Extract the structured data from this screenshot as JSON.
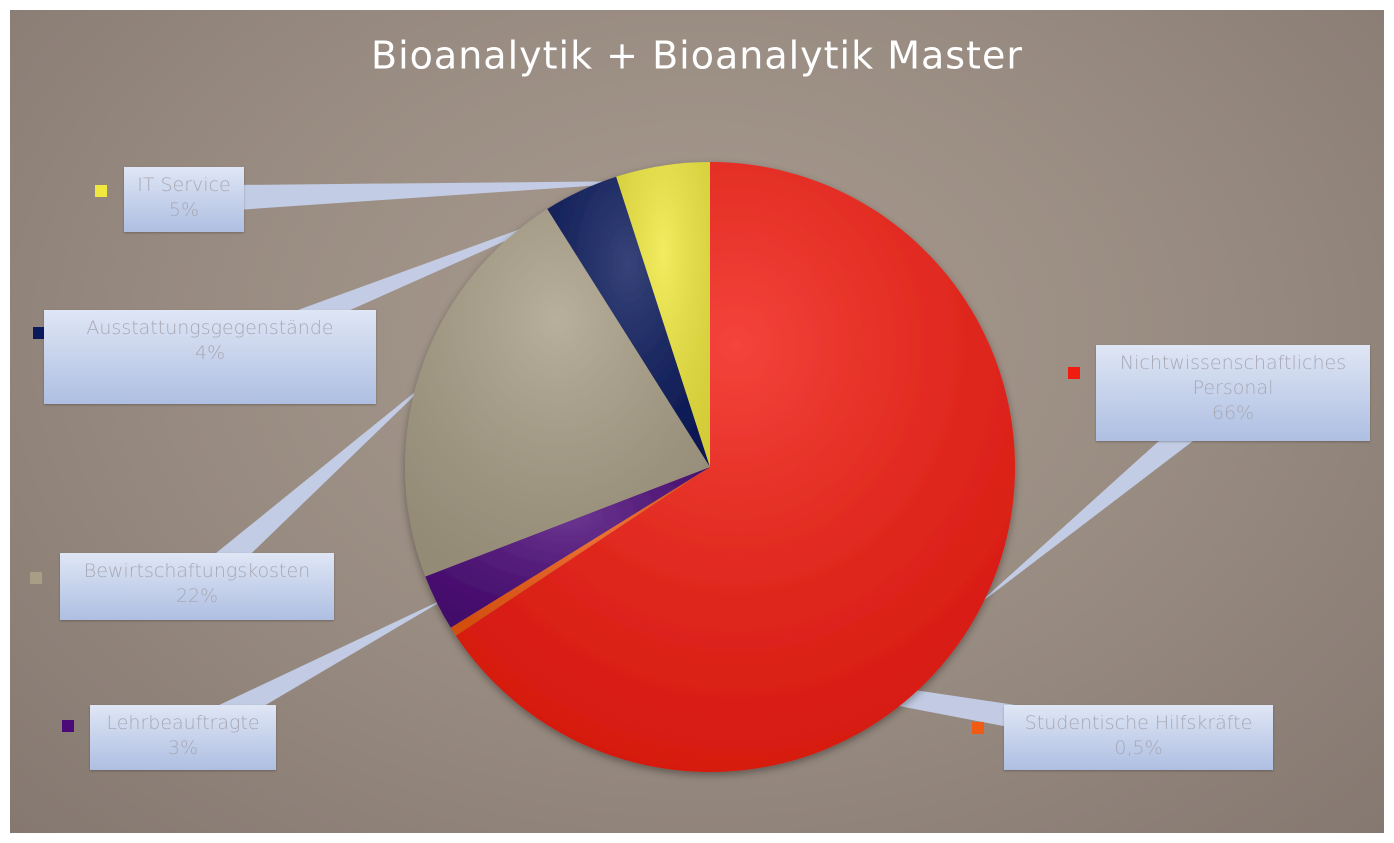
{
  "chart_data": {
    "type": "pie",
    "title": "Bioanalytik + Bioanalytik Master",
    "categories": [
      "Nichtwissenschaftliches Personal",
      "Studentische Hilfskräfte",
      "Lehrbeauftragte",
      "Bewirtschaftungskosten",
      "Ausstattungsgegenstände",
      "IT Service"
    ],
    "values": [
      66,
      0.5,
      3,
      22,
      4,
      5
    ],
    "value_labels": [
      "66%",
      "0,5%",
      "3%",
      "22%",
      "4%",
      "5%"
    ],
    "colors": [
      "#f21b10",
      "#f05a12",
      "#4b0a78",
      "#a89e86",
      "#0b1a5c",
      "#f0e83e"
    ]
  }
}
